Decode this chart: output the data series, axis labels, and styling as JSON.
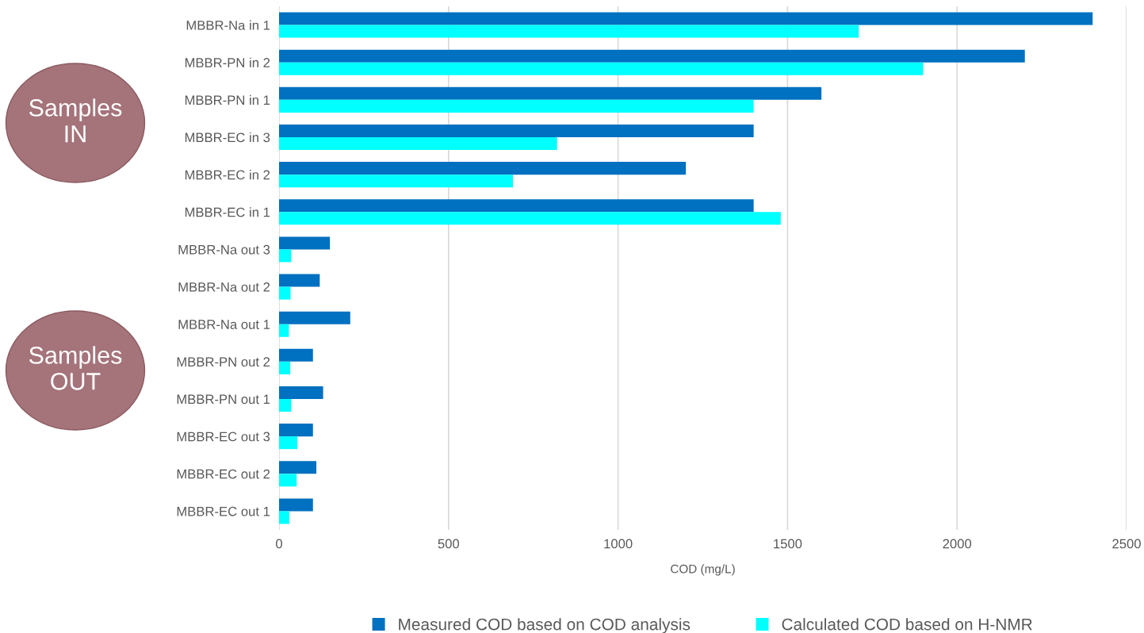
{
  "chart_data": {
    "type": "bar",
    "orientation": "horizontal",
    "xlabel": "COD (mg/L)",
    "categories": [
      "MBBR-Na in 1",
      "MBBR-PN in 2",
      "MBBR-PN in 1",
      "MBBR-EC in 3",
      "MBBR-EC in 2",
      "MBBR-EC in 1",
      "MBBR-Na out 3",
      "MBBR-Na out 2",
      "MBBR-Na out 1",
      "MBBR-PN out 2",
      "MBBR-PN out 1",
      "MBBR-EC out 3",
      "MBBR-EC out 2",
      "MBBR-EC out 1"
    ],
    "series": [
      {
        "name": "Measured COD based on COD analysis",
        "color": "#0070c0",
        "values": [
          2400,
          2200,
          1600,
          1400,
          1200,
          1400,
          150,
          120,
          210,
          100,
          130,
          100,
          110,
          100
        ]
      },
      {
        "name": "Calculated COD based on H-NMR",
        "color": "#00ffff",
        "values": [
          1710,
          1900,
          1400,
          820,
          690,
          1480,
          36,
          34,
          29,
          33,
          36,
          54,
          52,
          30
        ]
      }
    ],
    "xlim": [
      0,
      2500
    ],
    "xticks": [
      0,
      500,
      1000,
      1500,
      2000,
      2500
    ],
    "grid": "x",
    "legend": "bottom",
    "annotations": [
      "Samples\nIN",
      "Samples\nOUT"
    ]
  }
}
